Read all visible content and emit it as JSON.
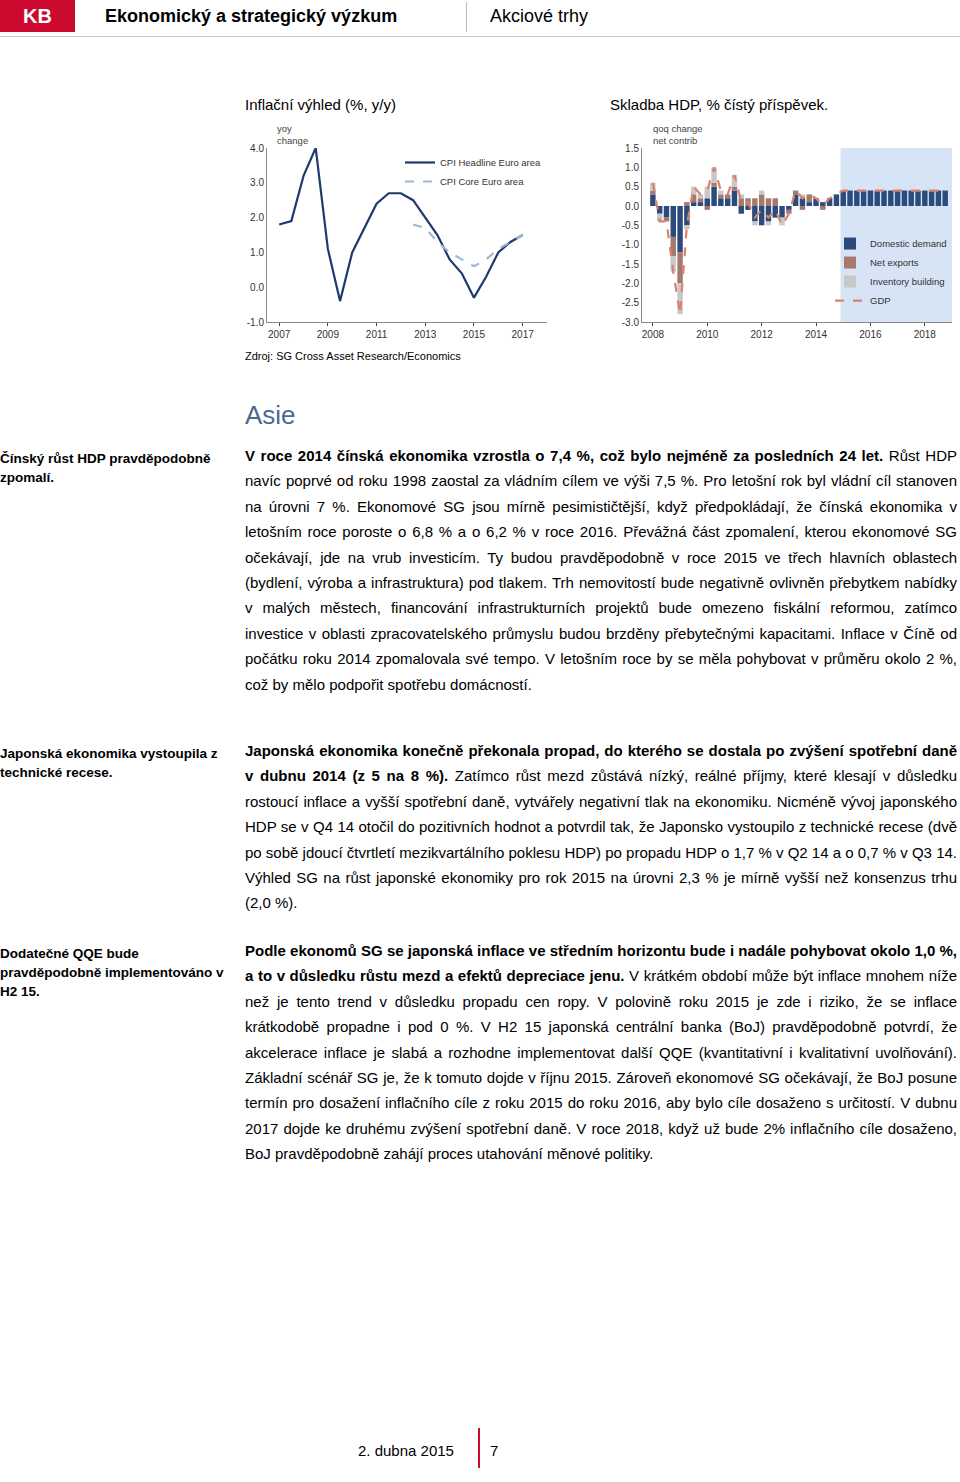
{
  "header": {
    "logo": "KB",
    "title": "Ekonomický a strategický výzkum",
    "section": "Akciové trhy"
  },
  "chart_data": [
    {
      "type": "line",
      "title": "Inflační výhled (%, y/y)",
      "annotations": [
        "yoy",
        "change"
      ],
      "source": "Zdroj: SG Cross Asset Research/Economics",
      "x": [
        2007,
        2007.5,
        2008,
        2008.5,
        2009,
        2009.5,
        2010,
        2010.5,
        2011,
        2011.5,
        2012,
        2012.5,
        2013,
        2013.5,
        2014,
        2014.5,
        2015,
        2015.5,
        2016,
        2016.5,
        2017
      ],
      "series": [
        {
          "name": "CPI Headline Euro area",
          "color": "#1f3a6e",
          "line_style": "solid",
          "values": [
            1.8,
            1.9,
            3.2,
            4.0,
            1.1,
            -0.4,
            1.0,
            1.7,
            2.4,
            2.7,
            2.7,
            2.5,
            2.0,
            1.5,
            0.8,
            0.4,
            -0.3,
            0.3,
            1.0,
            1.3,
            1.5
          ]
        },
        {
          "name": "CPI Core Euro area",
          "color": "#9db8dc",
          "line_style": "dash",
          "values": [
            null,
            null,
            null,
            null,
            null,
            null,
            null,
            null,
            null,
            null,
            null,
            1.8,
            1.7,
            1.3,
            1.0,
            0.8,
            0.6,
            0.8,
            1.1,
            1.3,
            1.5
          ]
        }
      ],
      "xlim": [
        2006.5,
        2018
      ],
      "xticks": [
        2007,
        2009,
        2011,
        2013,
        2015,
        2017
      ],
      "ylim": [
        -1,
        4
      ],
      "yticks": [
        {
          "value": -1,
          "label": "-1.0"
        },
        {
          "value": 0,
          "label": "0.0"
        },
        {
          "value": 1,
          "label": "1.0"
        },
        {
          "value": 2,
          "label": "2.0"
        },
        {
          "value": 3,
          "label": "3.0"
        },
        {
          "value": 4,
          "label": "4.0"
        }
      ],
      "legend": "upper right",
      "grid": false
    },
    {
      "type": "bar",
      "title": "Skladba HDP, % čístý příspěvek.",
      "annotations": [
        "qoq change",
        "net contrib"
      ],
      "stacked": true,
      "shaded_range": [
        2014.9,
        2019
      ],
      "x": [
        2008,
        2008.25,
        2008.5,
        2008.75,
        2009,
        2009.25,
        2009.5,
        2009.75,
        2010,
        2010.25,
        2010.5,
        2010.75,
        2011,
        2011.25,
        2011.5,
        2011.75,
        2012,
        2012.25,
        2012.5,
        2012.75,
        2013,
        2013.25,
        2013.5,
        2013.75,
        2014,
        2014.25,
        2014.5,
        2014.75,
        2015,
        2015.25,
        2015.5,
        2015.75,
        2016,
        2016.25,
        2016.5,
        2016.75,
        2017,
        2017.25,
        2017.5,
        2017.75,
        2018,
        2018.25,
        2018.5,
        2018.75
      ],
      "series": [
        {
          "name": "Domestic demand",
          "color": "#2a4b7c",
          "type": "bar",
          "values": [
            0.3,
            -0.2,
            -0.3,
            -0.8,
            -1.2,
            -0.5,
            0.1,
            0.1,
            0.2,
            0.5,
            0.2,
            0.2,
            0.4,
            -0.2,
            -0.1,
            -0.4,
            -0.5,
            -0.4,
            -0.3,
            -0.3,
            -0.1,
            0.3,
            0.2,
            0.1,
            0.2,
            0.1,
            0.2,
            0.3,
            0.4,
            0.4,
            0.4,
            0.4,
            0.4,
            0.4,
            0.4,
            0.4,
            0.4,
            0.4,
            0.4,
            0.4,
            0.4,
            0.4,
            0.4,
            0.4
          ]
        },
        {
          "name": "Net exports",
          "color": "#a47a6e",
          "type": "bar",
          "values": [
            0.1,
            0.0,
            -0.1,
            -0.5,
            -0.8,
            0.1,
            0.2,
            0.1,
            -0.1,
            0.1,
            0.1,
            0.1,
            0.1,
            0.2,
            0.2,
            0.2,
            0.3,
            0.2,
            0.2,
            0.0,
            -0.1,
            0.1,
            -0.1,
            0.2,
            0.0,
            -0.1,
            0.0,
            0.0,
            0.0,
            0.0,
            0.0,
            0.0,
            0.0,
            0.0,
            0.0,
            0.0,
            0.0,
            0.0,
            0.0,
            0.0,
            0.0,
            0.0,
            0.0,
            0.0
          ]
        },
        {
          "name": "Inventory building",
          "color": "#c8c8c8",
          "type": "bar",
          "values": [
            0.2,
            -0.2,
            0.0,
            -0.4,
            -0.8,
            -0.1,
            0.2,
            0.1,
            0.3,
            0.4,
            0.1,
            0.0,
            0.3,
            0.1,
            0.0,
            -0.1,
            0.1,
            -0.1,
            0.0,
            -0.2,
            0.0,
            0.0,
            0.1,
            0.0,
            0.0,
            0.0,
            0.0,
            0.0,
            0.0,
            0.0,
            0.0,
            0.0,
            0.0,
            0.0,
            0.0,
            0.0,
            0.0,
            0.0,
            0.0,
            0.0,
            0.0,
            0.0,
            0.0,
            0.0
          ]
        },
        {
          "name": "GDP",
          "color": "#d9826f",
          "type": "line",
          "line_style": "dash",
          "values": [
            0.6,
            -0.4,
            -0.4,
            -1.7,
            -2.8,
            -0.5,
            0.5,
            0.3,
            0.4,
            1.0,
            0.4,
            0.3,
            0.8,
            0.1,
            0.1,
            -0.3,
            -0.1,
            -0.3,
            -0.1,
            -0.5,
            -0.2,
            0.4,
            0.2,
            0.3,
            0.2,
            0.0,
            0.2,
            0.3,
            0.4,
            0.4,
            0.4,
            0.4,
            0.4,
            0.4,
            0.4,
            0.4,
            0.4,
            0.4,
            0.4,
            0.4,
            0.4,
            0.4,
            0.4,
            0.4
          ]
        }
      ],
      "xlim": [
        2007.6,
        2019
      ],
      "xticks": [
        2008,
        2010,
        2012,
        2014,
        2016,
        2018
      ],
      "ylim": [
        -3,
        1.5
      ],
      "yticks": [
        {
          "value": -3,
          "label": "-3.0"
        },
        -2.5,
        {
          "value": -2,
          "label": "-2.0"
        },
        -1.5,
        {
          "value": -1,
          "label": "-1.0"
        },
        -0.5,
        {
          "value": 0,
          "label": "0.0"
        },
        0.5,
        {
          "value": 1,
          "label": "1.0"
        },
        1.5
      ],
      "legend": "lower right",
      "grid": false
    }
  ],
  "document": {
    "section_title": "Asie",
    "rows": [
      {
        "note": "Čínský růst HDP pravděpodobně zpomalí.",
        "paragraph": [
          {
            "text": "V roce 2014 čínská ekonomika vzrostla o 7,4 %, což bylo nejméně za posledních 24 let.",
            "bold": true
          },
          {
            "text": " Růst HDP navíc poprvé od roku 1998 zaostal za vládním cílem ve výši 7,5 %. Pro letošní rok byl vládní cíl stanoven na úrovni 7 %. Ekonomové SG jsou mírně pesimističtější, když předpokládají, že čínská ekonomika v letošním roce poroste o 6,8 % a o 6,2 % v roce 2016. Převážná část zpomalení, kterou ekonomové SG očekávají, jde na vrub investicím. Ty budou pravděpodobně v roce 2015 ve třech hlavních oblastech (bydlení, výroba a infrastruktura) pod tlakem. Trh nemovitostí bude negativně ovlivněn přebytkem nabídky v malých městech, financování infrastrukturních projektů bude omezeno fiskální reformou, zatímco investice v oblasti zpracovatelského průmyslu budou brzděny přebytečnými kapacitami. Inflace v Číně od počátku roku 2014 zpomalovala své tempo. V letošním roce by se měla pohybovat v průměru okolo 2 %, což by mělo podpořit spotřebu domácností.",
            "bold": false
          }
        ]
      },
      {
        "note": "Japonská ekonomika vystoupila z technické recese.",
        "paragraph": [
          {
            "text": "Japonská ekonomika konečně překonala propad, do kterého se dostala po zvýšení spotřební daně v dubnu 2014 (z 5 na 8 %).",
            "bold": true
          },
          {
            "text": " Zatímco růst mezd zůstává nízký, reálné příjmy, které klesají v důsledku rostoucí inflace a vyšší spotřební daně, vytvářely negativní tlak na ekonomiku. Nicméně vývoj japonského HDP se v Q4 14 otočil do pozitivních hodnot a potvrdil tak, že Japonsko vystoupilo z technické recese (dvě po sobě jdoucí čtvrtletí mezikvartálního poklesu HDP) po propadu HDP o 1,7 % v Q2 14 a o 0,7 % v Q3 14. Výhled SG na růst japonské ekonomiky pro rok 2015 na úrovni 2,3 % je mírně vyšší než konsenzus trhu (2,0 %).",
            "bold": false
          }
        ]
      },
      {
        "note": "Dodatečné QQE bude pravděpodobně implementováno v H2 15.",
        "paragraph": [
          {
            "text": "Podle ekonomů SG se japonská inflace ve středním horizontu bude i nadále pohybovat okolo 1,0 %, a to v důsledku růstu mezd a efektů depreciace jenu.",
            "bold": true
          },
          {
            "text": " V krátkém období může být inflace mnohem níže než je tento trend v důsledku propadu cen ropy. V polovině roku 2015 je zde i riziko, že se inflace krátkodobě propadne i pod 0 %. V H2 15 japonská centrální banka (BoJ) pravděpodobně potvrdí, že akcelerace inflace je slabá a rozhodne implementovat další QQE (kvantitativní i kvalitativní uvolňování). Základní scénář SG je, že k tomuto dojde v říjnu 2015. Zároveň ekonomové SG očekávají, že BoJ posune termín pro dosažení inflačního cíle z roku 2015 do roku 2016, aby bylo cíle dosaženo s určitostí. V dubnu 2017 dojde ke druhému zvýšení spotřební daně. V roce 2018, když už bude 2% inflačního cíle dosaženo, BoJ pravděpodobně zahájí proces utahování měnové politiky.",
            "bold": false
          }
        ]
      }
    ]
  },
  "footer": {
    "date": "2. dubna 2015",
    "page": "7"
  }
}
